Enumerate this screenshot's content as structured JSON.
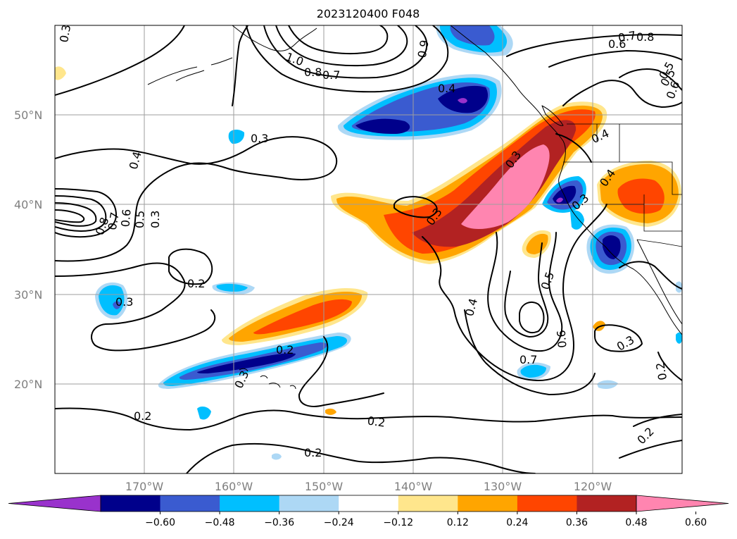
{
  "title": "2023120400 F048",
  "map": {
    "lat_labels": [
      "50°N",
      "40°N",
      "30°N",
      "20°N"
    ],
    "lon_labels": [
      "170°W",
      "160°W",
      "150°W",
      "140°W",
      "130°W",
      "120°W"
    ],
    "contour_labels": [
      "0.3",
      "1.0",
      "0.8",
      "0.7",
      "0.9",
      "0.4",
      "0.3",
      "0.4",
      "0.8",
      "0.7",
      "0.6",
      "0.5",
      "0.3",
      "0.3",
      "0.3",
      "0.4",
      "0.3",
      "0.5",
      "0.4",
      "0.2",
      "0.3",
      "0.2",
      "0.3",
      "0.4",
      "0.5",
      "0.7",
      "0.6",
      "0.3",
      "0.2",
      "0.2",
      "0.2",
      "0.2",
      "0.2",
      "0.7",
      "0.8",
      "0.6",
      "0.5",
      "0.6"
    ]
  },
  "colorbar": {
    "ticks": [
      "−0.60",
      "−0.48",
      "−0.36",
      "−0.24",
      "−0.12",
      "0.12",
      "0.24",
      "0.36",
      "0.48",
      "0.60"
    ],
    "colors": [
      "#9932cc",
      "#00008b",
      "#3a5bd0",
      "#00bfff",
      "#add8f5",
      "#ffffff",
      "#ffe68c",
      "#ffa500",
      "#ff4500",
      "#b22222",
      "#ff85b0"
    ],
    "extend": "both"
  }
}
